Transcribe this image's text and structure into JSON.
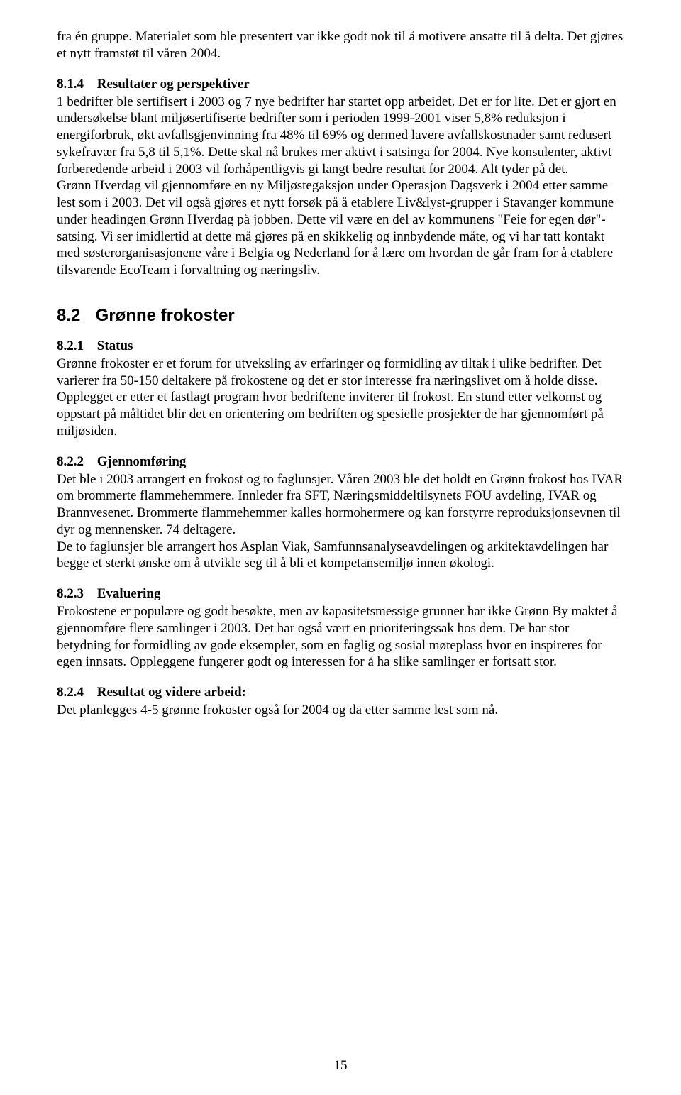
{
  "topBlock": {
    "p1": "fra én gruppe. Materialet som ble presentert var ikke godt nok til å motivere ansatte til å delta. Det gjøres et nytt framstøt til våren 2004."
  },
  "sec814": {
    "num": "8.1.4",
    "title": "Resultater og perspektiver",
    "p1": "1 bedrifter ble sertifisert i 2003 og 7 nye bedrifter har startet opp arbeidet. Det er for lite. Det er gjort en undersøkelse blant miljøsertifiserte bedrifter som i perioden 1999-2001 viser 5,8% reduksjon i energiforbruk, økt avfallsgjenvinning fra 48% til 69% og dermed lavere avfallskostnader samt redusert sykefravær fra 5,8 til 5,1%. Dette skal nå brukes mer aktivt i satsinga for 2004. Nye konsulenter, aktivt forberedende arbeid i 2003 vil forhåpentligvis gi langt bedre resultat for 2004. Alt tyder på det.",
    "p2": "Grønn Hverdag vil gjennomføre en ny Miljøstegaksjon under Operasjon Dagsverk i 2004 etter samme lest som i 2003. Det vil også gjøres et nytt forsøk på å etablere Liv&lyst-grupper i Stavanger kommune under headingen Grønn Hverdag på jobben. Dette vil være en del av kommunens \"Feie for egen dør\"-satsing. Vi ser imidlertid at dette må gjøres på en skikkelig og innbydende måte, og vi har tatt kontakt med søsterorganisasjonene våre i Belgia og Nederland for å lære om hvordan de går fram for å etablere tilsvarende EcoTeam i forvaltning og næringsliv."
  },
  "sec82": {
    "num": "8.2",
    "title": "Grønne frokoster"
  },
  "sec821": {
    "num": "8.2.1",
    "title": "Status",
    "p1": "Grønne frokoster er et forum for utveksling av erfaringer og formidling av tiltak i ulike bedrifter. Det varierer fra 50-150 deltakere på frokostene og det er stor interesse fra næringslivet om å holde disse. Opplegget er etter et fastlagt program hvor bedriftene inviterer til frokost. En stund etter velkomst og oppstart på måltidet blir det en orientering om bedriften og spesielle prosjekter de har gjennomført på miljøsiden."
  },
  "sec822": {
    "num": "8.2.2",
    "title": "Gjennomføring",
    "p1": "Det ble i 2003 arrangert en frokost og to faglunsjer. Våren 2003 ble det holdt en Grønn frokost hos IVAR om brommerte flammehemmere. Innleder fra SFT, Næringsmiddeltilsynets FOU avdeling, IVAR og Brannvesenet. Brommerte flammehemmer kalles hormohermere og kan forstyrre reproduksjonsevnen til dyr og mennensker. 74 deltagere.",
    "p2": "De to faglunsjer ble arrangert hos Asplan Viak, Samfunnsanalyseavdelingen og arkitektavdelingen har begge et sterkt ønske om å utvikle seg til å bli et kompetansemiljø innen økologi."
  },
  "sec823": {
    "num": "8.2.3",
    "title": "Evaluering",
    "p1": "Frokostene er populære og godt besøkte, men av kapasitetsmessige grunner har ikke Grønn By maktet å gjennomføre flere samlinger i 2003. Det har også vært en prioriteringssak hos dem. De har stor betydning for formidling av gode eksempler, som en faglig og sosial møteplass hvor en inspireres for egen innsats. Oppleggene fungerer godt og interessen for å ha slike samlinger er fortsatt stor."
  },
  "sec824": {
    "num": "8.2.4",
    "title": "Resultat og videre arbeid:",
    "p1": "Det planlegges 4-5 grønne frokoster også for 2004 og da etter samme lest som nå."
  },
  "pageNumber": "15"
}
